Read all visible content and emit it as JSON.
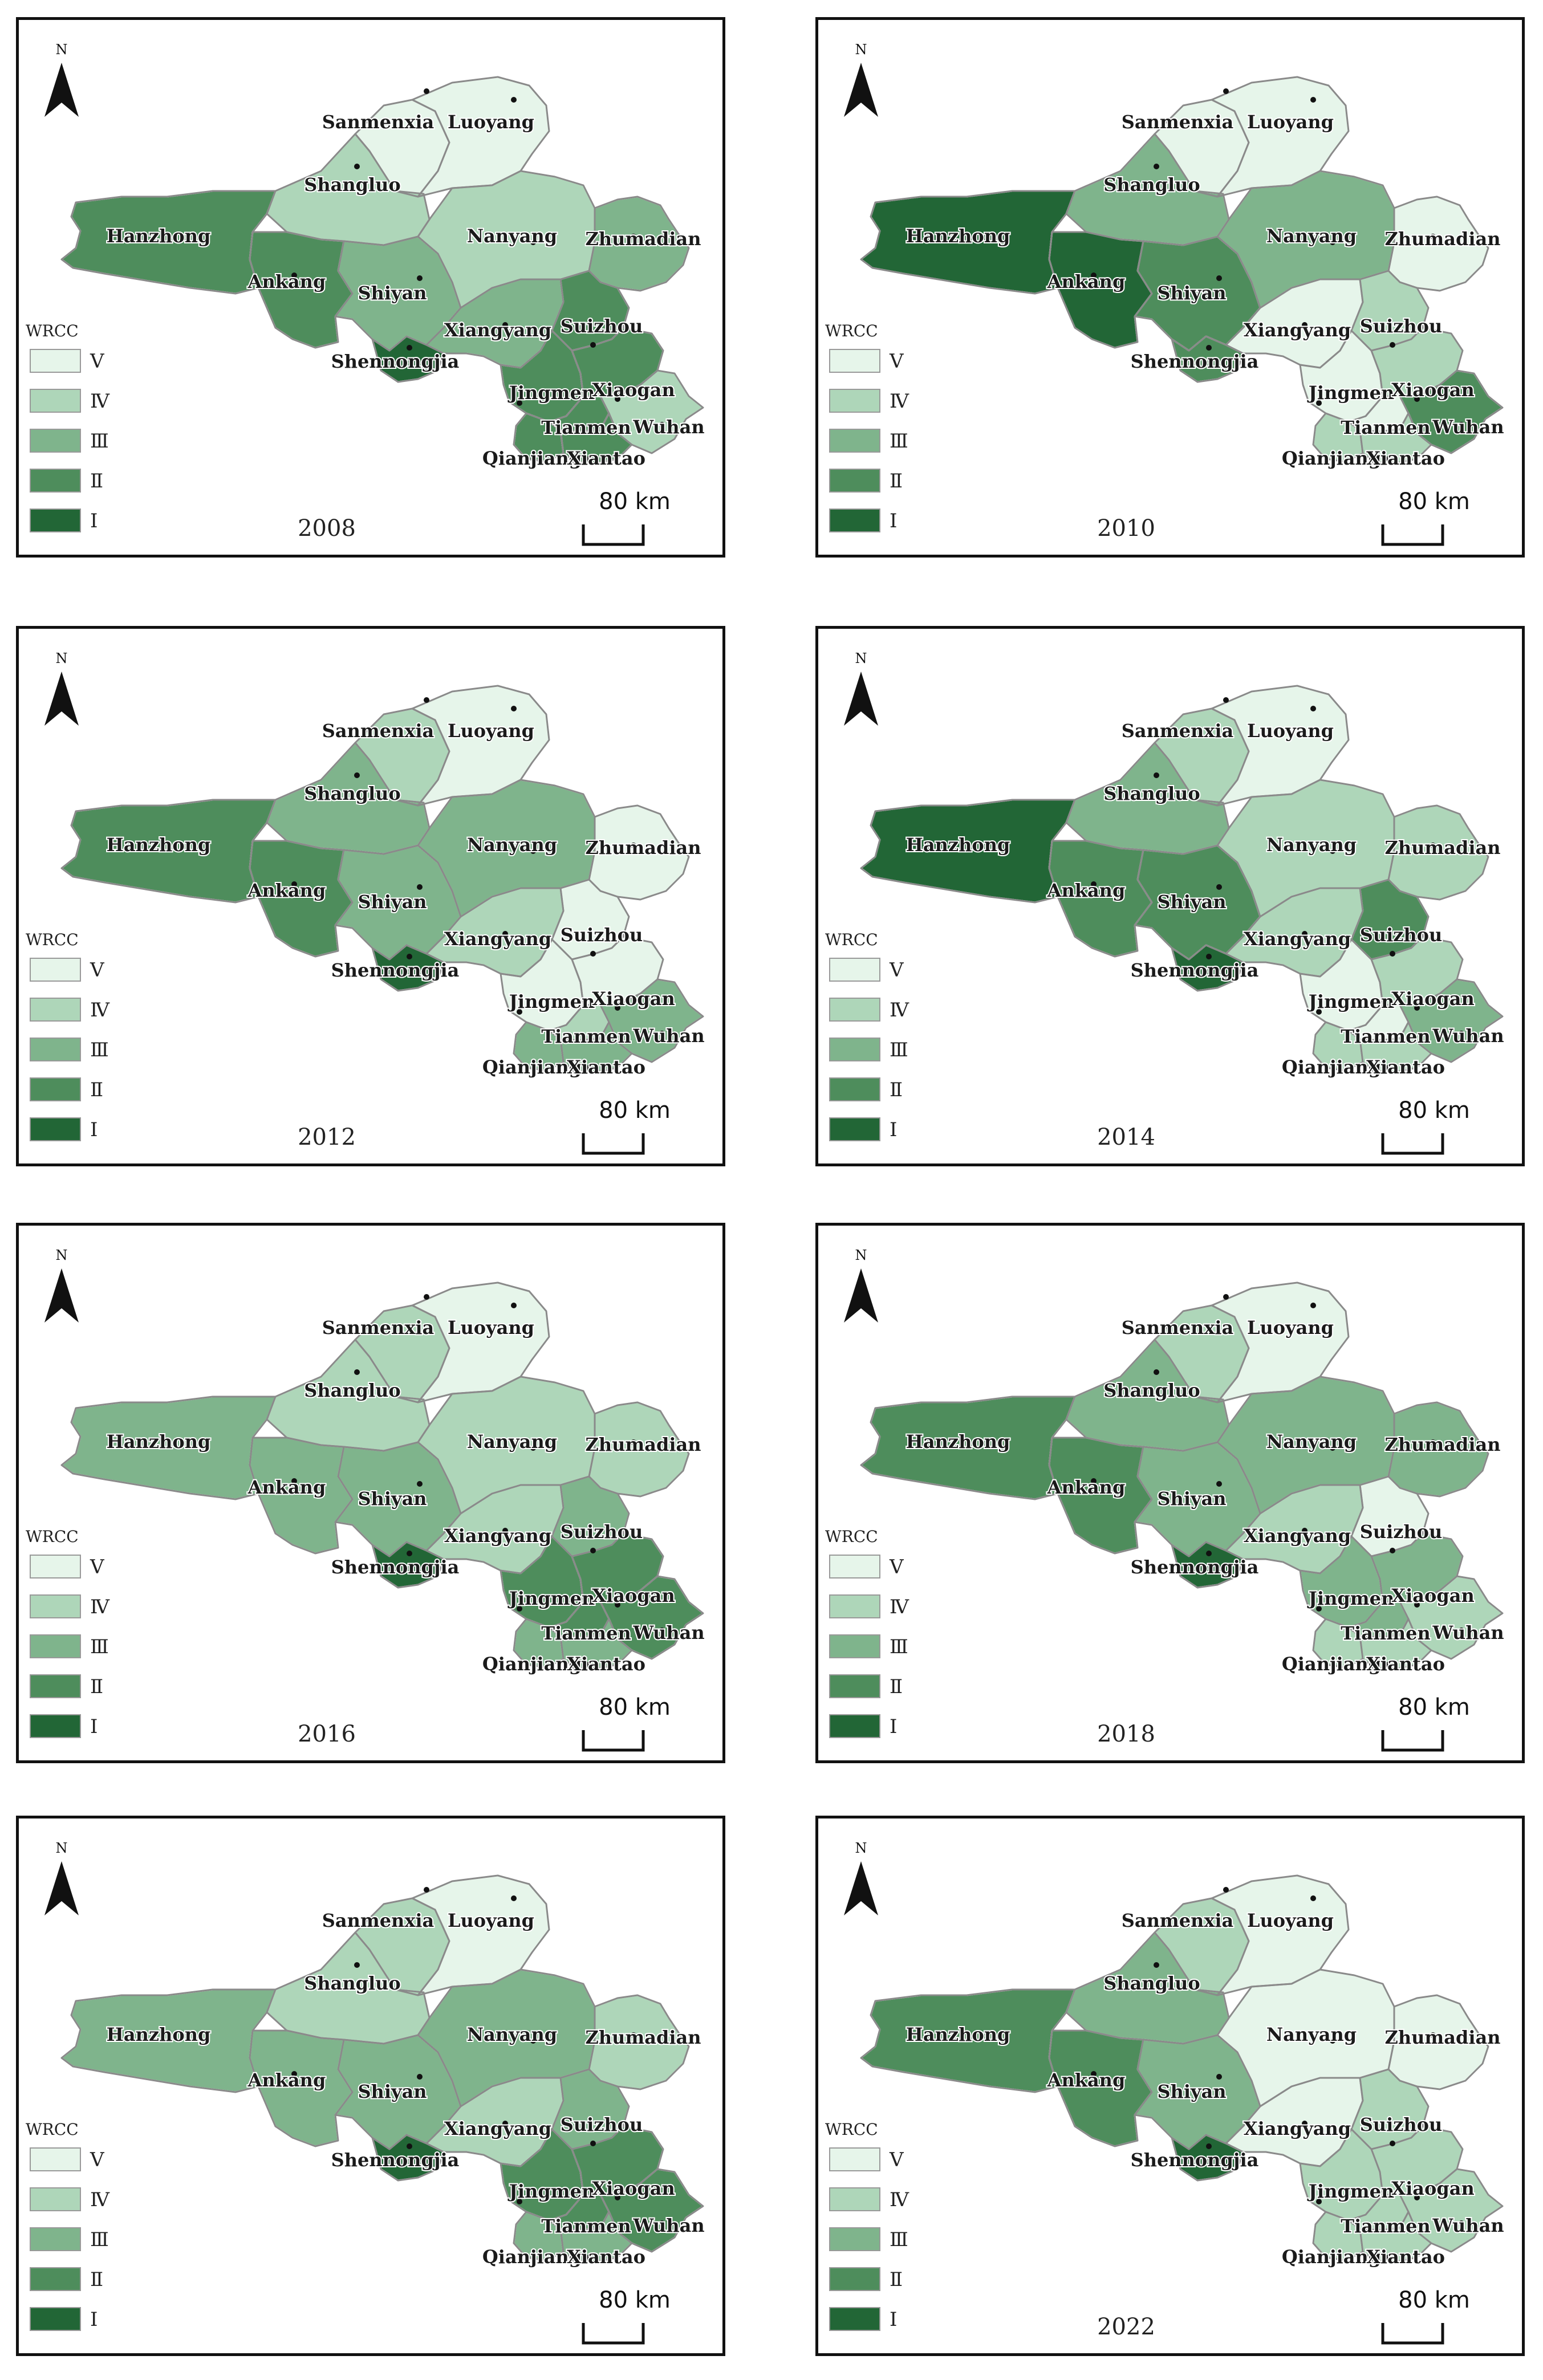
{
  "map_data": {
    "legend_title": "WRCC",
    "classes": [
      {
        "key": "V",
        "label": "V",
        "color": "#e6f5ea"
      },
      {
        "key": "IV",
        "label": "Ⅳ",
        "color": "#aed6b9"
      },
      {
        "key": "III",
        "label": "Ⅲ",
        "color": "#7fb48c"
      },
      {
        "key": "II",
        "label": "Ⅱ",
        "color": "#4e8d5c"
      },
      {
        "key": "I",
        "label": "I",
        "color": "#226636"
      }
    ],
    "north_label": "N",
    "scale_label": "80 km",
    "panels": [
      {
        "year": "2008",
        "classes": {
          "Luoyang": "V",
          "Sanmenxia": "V",
          "Shangluo": "IV",
          "Hanzhong": "II",
          "Ankang": "II",
          "Shiyan": "III",
          "Shennongjia": "I",
          "Nanyang": "IV",
          "Zhumadian": "III",
          "Xiangyang": "III",
          "Suizhou": "II",
          "Jingmen": "II",
          "Xiaogan": "II",
          "Tianmen": "II",
          "Wuhan": "IV",
          "Qianjiang": "II",
          "Xiantao": "II"
        }
      },
      {
        "year": "2010",
        "classes": {
          "Luoyang": "V",
          "Sanmenxia": "V",
          "Shangluo": "III",
          "Hanzhong": "I",
          "Ankang": "I",
          "Shiyan": "II",
          "Shennongjia": "II",
          "Nanyang": "III",
          "Zhumadian": "V",
          "Xiangyang": "V",
          "Suizhou": "IV",
          "Jingmen": "V",
          "Xiaogan": "IV",
          "Tianmen": "V",
          "Wuhan": "II",
          "Qianjiang": "IV",
          "Xiantao": "IV"
        }
      },
      {
        "year": "2012",
        "classes": {
          "Luoyang": "V",
          "Sanmenxia": "IV",
          "Shangluo": "III",
          "Hanzhong": "II",
          "Ankang": "II",
          "Shiyan": "III",
          "Shennongjia": "I",
          "Nanyang": "III",
          "Zhumadian": "V",
          "Xiangyang": "IV",
          "Suizhou": "V",
          "Jingmen": "V",
          "Xiaogan": "V",
          "Tianmen": "IV",
          "Wuhan": "III",
          "Qianjiang": "III",
          "Xiantao": "III"
        }
      },
      {
        "year": "2014",
        "classes": {
          "Luoyang": "V",
          "Sanmenxia": "IV",
          "Shangluo": "III",
          "Hanzhong": "I",
          "Ankang": "II",
          "Shiyan": "II",
          "Shennongjia": "I",
          "Nanyang": "IV",
          "Zhumadian": "IV",
          "Xiangyang": "IV",
          "Suizhou": "II",
          "Jingmen": "V",
          "Xiaogan": "IV",
          "Tianmen": "V",
          "Wuhan": "III",
          "Qianjiang": "IV",
          "Xiantao": "IV"
        }
      },
      {
        "year": "2016",
        "classes": {
          "Luoyang": "V",
          "Sanmenxia": "IV",
          "Shangluo": "IV",
          "Hanzhong": "III",
          "Ankang": "III",
          "Shiyan": "III",
          "Shennongjia": "I",
          "Nanyang": "IV",
          "Zhumadian": "IV",
          "Xiangyang": "IV",
          "Suizhou": "III",
          "Jingmen": "II",
          "Xiaogan": "II",
          "Tianmen": "II",
          "Wuhan": "II",
          "Qianjiang": "III",
          "Xiantao": "III"
        }
      },
      {
        "year": "2018",
        "classes": {
          "Luoyang": "V",
          "Sanmenxia": "IV",
          "Shangluo": "III",
          "Hanzhong": "II",
          "Ankang": "II",
          "Shiyan": "III",
          "Shennongjia": "I",
          "Nanyang": "III",
          "Zhumadian": "III",
          "Xiangyang": "IV",
          "Suizhou": "V",
          "Jingmen": "III",
          "Xiaogan": "III",
          "Tianmen": "III",
          "Wuhan": "IV",
          "Qianjiang": "IV",
          "Xiantao": "IV"
        }
      },
      {
        "year": "",
        "classes": {
          "Luoyang": "V",
          "Sanmenxia": "IV",
          "Shangluo": "IV",
          "Hanzhong": "III",
          "Ankang": "III",
          "Shiyan": "III",
          "Shennongjia": "I",
          "Nanyang": "III",
          "Zhumadian": "IV",
          "Xiangyang": "IV",
          "Suizhou": "III",
          "Jingmen": "II",
          "Xiaogan": "II",
          "Tianmen": "II",
          "Wuhan": "II",
          "Qianjiang": "III",
          "Xiantao": "III"
        }
      },
      {
        "year": "2022",
        "classes": {
          "Luoyang": "V",
          "Sanmenxia": "IV",
          "Shangluo": "III",
          "Hanzhong": "II",
          "Ankang": "II",
          "Shiyan": "III",
          "Shennongjia": "I",
          "Nanyang": "V",
          "Zhumadian": "V",
          "Xiangyang": "V",
          "Suizhou": "IV",
          "Jingmen": "IV",
          "Xiaogan": "IV",
          "Tianmen": "IV",
          "Wuhan": "IV",
          "Qianjiang": "IV",
          "Xiantao": "IV"
        }
      }
    ],
    "region_names": [
      "Sanmenxia",
      "Luoyang",
      "Shangluo",
      "Hanzhong",
      "Ankang",
      "Shiyan",
      "Nanyang",
      "Zhumadian",
      "Xiangyang",
      "Suizhou",
      "Shennongjia",
      "Jingmen",
      "Xiaogan",
      "Tianmen",
      "Wuhan",
      "Qianjiang",
      "Xiantao"
    ]
  }
}
